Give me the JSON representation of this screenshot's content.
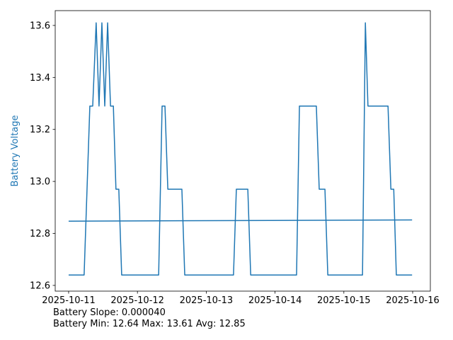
{
  "chart_data": {
    "type": "line",
    "y_label": "Battery Voltage",
    "y_label_color": "#1f77b4",
    "annotations": [
      "Battery Slope: 0.000040",
      "Battery Min: 12.64 Max: 13.61 Avg: 12.85"
    ],
    "series": [
      {
        "color": "#1f77b4",
        "x": [
          "2025-10-11T00:00",
          "2025-10-11T05:24",
          "2025-10-11T07:24",
          "2025-10-11T08:24",
          "2025-10-11T09:36",
          "2025-10-11T10:36",
          "2025-10-11T11:36",
          "2025-10-11T12:36",
          "2025-10-11T13:36",
          "2025-10-11T14:36",
          "2025-10-11T15:36",
          "2025-10-11T16:30",
          "2025-10-11T17:30",
          "2025-10-11T18:30",
          "2025-10-12T07:24",
          "2025-10-12T08:36",
          "2025-10-12T09:36",
          "2025-10-12T10:36",
          "2025-10-12T15:30",
          "2025-10-12T16:30",
          "2025-10-13T09:30",
          "2025-10-13T10:30",
          "2025-10-13T14:30",
          "2025-10-13T15:30",
          "2025-10-14T07:30",
          "2025-10-14T08:30",
          "2025-10-14T14:24",
          "2025-10-14T15:24",
          "2025-10-14T17:24",
          "2025-10-14T18:24",
          "2025-10-15T06:30",
          "2025-10-15T07:30",
          "2025-10-15T08:24",
          "2025-10-15T15:24",
          "2025-10-15T16:24",
          "2025-10-15T17:24",
          "2025-10-15T18:18",
          "2025-10-15T23:48"
        ],
        "values": [
          12.64,
          12.64,
          13.29,
          13.29,
          13.61,
          13.29,
          13.61,
          13.29,
          13.61,
          13.29,
          13.29,
          12.97,
          12.97,
          12.64,
          12.64,
          13.29,
          13.29,
          12.97,
          12.97,
          12.64,
          12.64,
          12.97,
          12.97,
          12.64,
          12.64,
          13.29,
          13.29,
          12.97,
          12.97,
          12.64,
          12.64,
          13.61,
          13.29,
          13.29,
          12.97,
          12.97,
          12.64,
          12.64
        ]
      },
      {
        "color": "#1f77b4",
        "x": [
          "2025-10-11T00:00",
          "2025-10-15T23:48"
        ],
        "values": [
          12.847,
          12.852
        ]
      }
    ],
    "xlim": [
      "2025-10-10T19:19",
      "2025-10-16T06:10"
    ],
    "xticks": [
      "2025-10-11",
      "2025-10-12",
      "2025-10-13",
      "2025-10-14",
      "2025-10-15",
      "2025-10-16"
    ],
    "ylim": [
      12.578,
      13.657
    ],
    "yticks": [
      12.6,
      12.8,
      {
        "value": 13,
        "label": "13.0"
      },
      13.2,
      13.4,
      13.6
    ],
    "grid": false
  }
}
